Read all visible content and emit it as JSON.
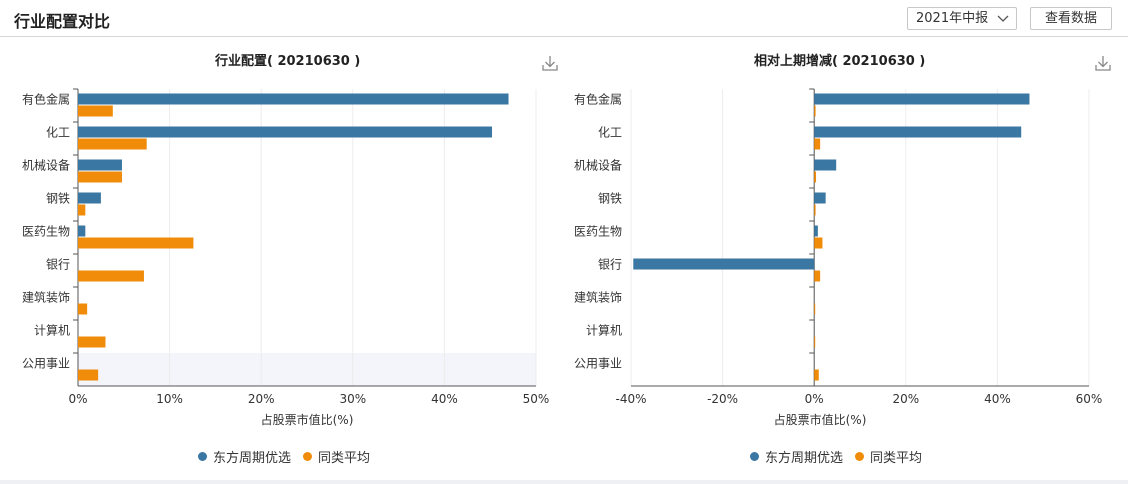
{
  "header": {
    "title": "行业配置对比",
    "period_select": "2021年中报",
    "view_data_button": "查看数据"
  },
  "colors": {
    "primary": "#3a77a3",
    "secondary": "#f08c0a",
    "highlight_band": "#f3f5fa"
  },
  "chart_data": [
    {
      "type": "bar",
      "orientation": "horizontal",
      "title": "行业配置( 20210630 )",
      "xlabel": "占股票市值比(%)",
      "categories": [
        "有色金属",
        "化工",
        "机械设备",
        "钢铁",
        "医药生物",
        "银行",
        "建筑装饰",
        "计算机",
        "公用事业"
      ],
      "series": [
        {
          "name": "东方周期优选",
          "color": "#3a77a3",
          "values": [
            47.0,
            45.2,
            4.8,
            2.5,
            0.8,
            0,
            0,
            0,
            0
          ]
        },
        {
          "name": "同类平均",
          "color": "#f08c0a",
          "values": [
            3.8,
            7.5,
            4.8,
            0.8,
            12.6,
            7.2,
            1.0,
            3.0,
            2.2
          ]
        }
      ],
      "xlim": [
        0,
        50
      ],
      "xticks": [
        0,
        10,
        20,
        30,
        40,
        50
      ],
      "xtick_labels": [
        "0%",
        "10%",
        "20%",
        "30%",
        "40%",
        "50%"
      ],
      "grid": true,
      "legend": "bottom-center",
      "highlighted_category": "公用事业"
    },
    {
      "type": "bar",
      "orientation": "horizontal",
      "title": "相对上期增减( 20210630 )",
      "xlabel": "占股票市值比(%)",
      "categories": [
        "有色金属",
        "化工",
        "机械设备",
        "钢铁",
        "医药生物",
        "银行",
        "建筑装饰",
        "计算机",
        "公用事业"
      ],
      "series": [
        {
          "name": "东方周期优选",
          "color": "#3a77a3",
          "values": [
            47.0,
            45.2,
            4.8,
            2.5,
            0.8,
            -39.5,
            0,
            0,
            0
          ]
        },
        {
          "name": "同类平均",
          "color": "#f08c0a",
          "values": [
            0.3,
            1.3,
            0.4,
            0.3,
            1.8,
            1.3,
            0.2,
            0.1,
            1.0
          ]
        }
      ],
      "xlim": [
        -40,
        60
      ],
      "xticks": [
        -40,
        -20,
        0,
        20,
        40,
        60
      ],
      "xtick_labels": [
        "-40%",
        "-20%",
        "0%",
        "20%",
        "40%",
        "60%"
      ],
      "grid": true,
      "legend": "bottom-center"
    }
  ]
}
